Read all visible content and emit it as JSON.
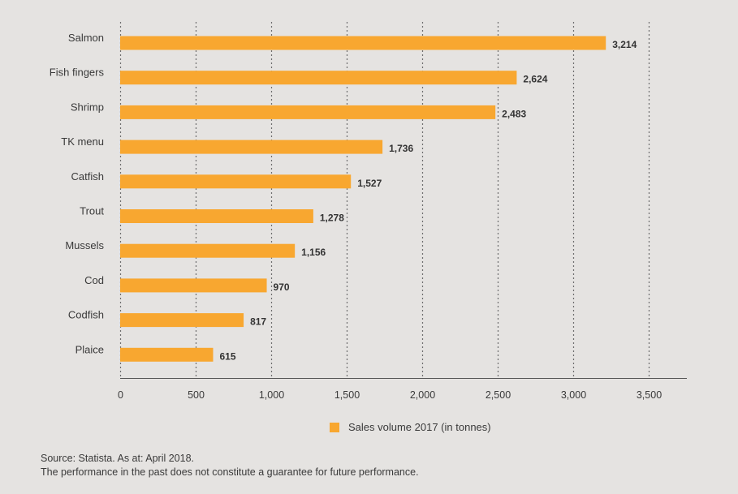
{
  "colors": {
    "bar": "#f8a730",
    "grid": "#6e6e6e",
    "axis": "#555555",
    "background": "#e5e3e1"
  },
  "chart_data": {
    "type": "bar",
    "orientation": "horizontal",
    "categories": [
      "Salmon",
      "Fish fingers",
      "Shrimp",
      "TK menu",
      "Catfish",
      "Trout",
      "Mussels",
      "Cod",
      "Codfish",
      "Plaice"
    ],
    "series": [
      {
        "name": "Sales volume 2017 (in tonnes)",
        "values": [
          3214,
          2624,
          2483,
          1736,
          1527,
          1278,
          1156,
          970,
          817,
          615
        ],
        "value_labels": [
          "3,214",
          "2,624",
          "2,483",
          "1,736",
          "1,527",
          "1,278",
          "1,156",
          "970",
          "817",
          "615"
        ]
      }
    ],
    "xlim": [
      0,
      3750
    ],
    "xticks": [
      0,
      500,
      1000,
      1500,
      2000,
      2500,
      3000,
      3500
    ],
    "xtick_labels": [
      "0",
      "500",
      "1,000",
      "1,500",
      "2,000",
      "2,500",
      "3,000",
      "3,500"
    ],
    "grid": "vertical dotted",
    "legend_position": "bottom-center",
    "title": "",
    "xlabel": "",
    "ylabel": ""
  },
  "legend": {
    "label": "Sales volume 2017 (in tonnes)"
  },
  "source": {
    "line1": "Source: Statista. As at: April 2018.",
    "line2": "The performance in the past does not constitute a guarantee for future performance."
  }
}
